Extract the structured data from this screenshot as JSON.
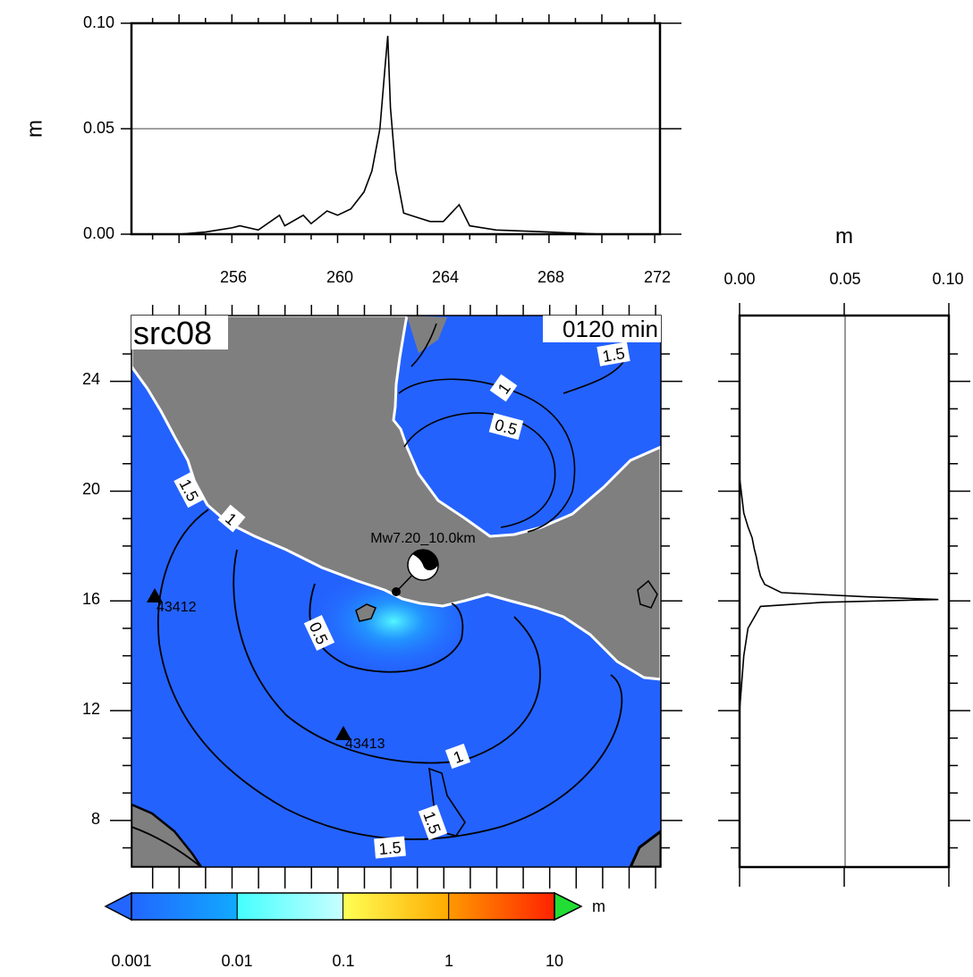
{
  "map": {
    "title": "src08",
    "time": "0120 min",
    "epicenter_label": "Mw7.20_10.0km",
    "lat_ticks": [
      "8",
      "12",
      "16",
      "20",
      "24"
    ],
    "stations": [
      {
        "id": "43412",
        "lon": 253.2,
        "lat": 16.1
      },
      {
        "id": "43413",
        "lon": 260.8,
        "lat": 11.1
      }
    ],
    "contour_labels": [
      "1.5",
      "1",
      "0.5",
      "1.5",
      "1",
      "0.5",
      "1",
      "1.5",
      "1.5"
    ]
  },
  "top_profile": {
    "ylabel": "m",
    "y_ticks": [
      "0.00",
      "0.05",
      "0.10"
    ],
    "x_ticks": [
      "256",
      "260",
      "264",
      "268",
      "272"
    ]
  },
  "side_profile": {
    "xlabel": "m",
    "x_ticks": [
      "0.00",
      "0.05",
      "0.10"
    ]
  },
  "colorbar": {
    "unit": "m",
    "ticks": [
      "0.001",
      "0.01",
      "0.1",
      "1",
      "10"
    ],
    "colors": [
      "#2266ff",
      "#11aaff",
      "#44ffff",
      "#ffff55",
      "#ff9900",
      "#ff2200",
      "#22dd33"
    ]
  },
  "chart_data": [
    {
      "type": "line",
      "title": "",
      "xlabel": "",
      "ylabel": "m",
      "xlim": [
        252.2,
        272.2
      ],
      "ylim": [
        0,
        0.1
      ],
      "x": [
        254,
        255,
        256,
        256.3,
        257,
        257.8,
        258,
        258.7,
        259,
        259.6,
        260,
        260.5,
        261,
        261.3,
        261.6,
        261.8,
        261.9,
        262.0,
        262.2,
        262.5,
        263,
        263.5,
        264,
        264.6,
        265,
        266,
        268,
        270,
        272
      ],
      "series": [
        {
          "values": [
            0.0,
            0.001,
            0.003,
            0.004,
            0.002,
            0.009,
            0.004,
            0.009,
            0.005,
            0.011,
            0.009,
            0.012,
            0.02,
            0.03,
            0.05,
            0.08,
            0.094,
            0.06,
            0.03,
            0.01,
            0.008,
            0.006,
            0.006,
            0.014,
            0.004,
            0.002,
            0.001,
            0.0,
            0.0
          ]
        }
      ]
    },
    {
      "type": "line",
      "title": "",
      "xlabel": "m",
      "ylabel": "",
      "xlim": [
        0,
        0.1
      ],
      "ylim": [
        6.3,
        26.4
      ],
      "x": [
        0.0,
        0.0,
        0.002,
        0.004,
        0.006,
        0.007,
        0.008,
        0.009,
        0.01,
        0.012,
        0.02,
        0.06,
        0.095,
        0.04,
        0.01,
        0.004,
        0.002,
        0.0
      ],
      "series": [
        {
          "name": "",
          "lat": [
            22.5,
            20.5,
            19.2,
            18.7,
            18.3,
            17.9,
            17.6,
            17.2,
            16.9,
            16.6,
            16.3,
            16.15,
            16.05,
            15.95,
            15.8,
            15.0,
            14.0,
            12.0
          ]
        }
      ]
    }
  ]
}
